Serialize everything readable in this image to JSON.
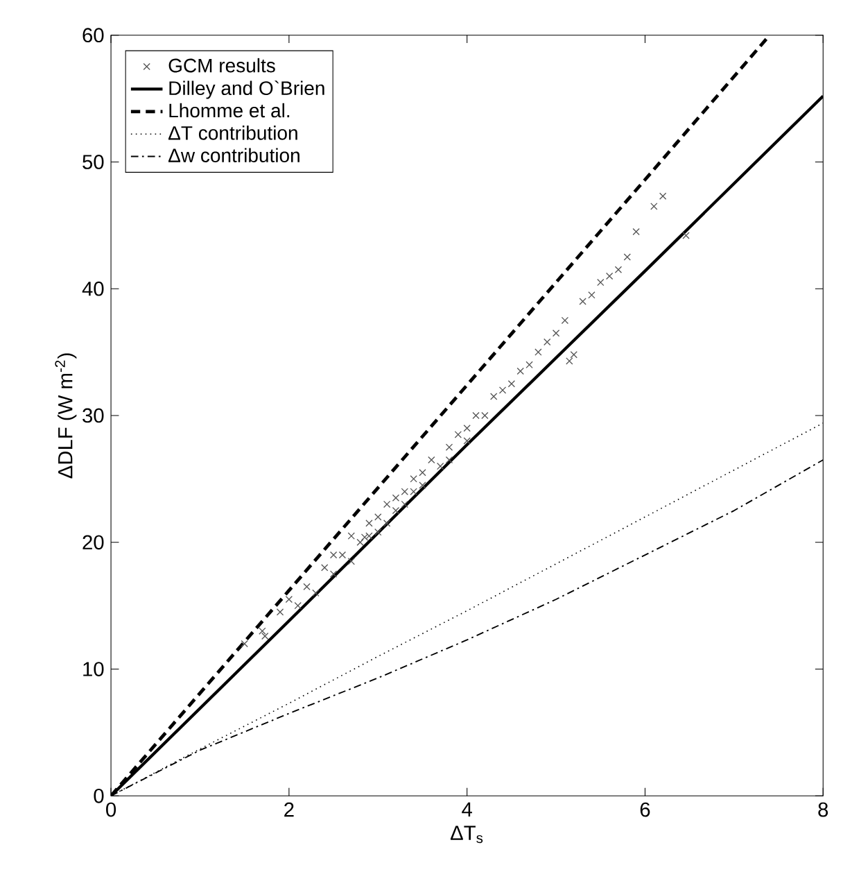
{
  "chart_data": {
    "type": "line",
    "xlabel": "ΔT$_{s}$",
    "ylabel": "ΔDLF (W m$^{-2}$)",
    "xlim": [
      0,
      8
    ],
    "ylim": [
      0,
      60
    ],
    "xticks": [
      0,
      2,
      4,
      6,
      8
    ],
    "yticks": [
      0,
      10,
      20,
      30,
      40,
      50,
      60
    ],
    "grid": false,
    "legend": "top left",
    "series": [
      {
        "name": "GCM results",
        "type": "scatter",
        "marker": "cross",
        "color": "#555555",
        "x": [
          1.5,
          1.7,
          1.73,
          1.9,
          2.0,
          2.1,
          2.2,
          2.3,
          2.4,
          2.5,
          2.5,
          2.6,
          2.7,
          2.7,
          2.8,
          2.85,
          2.9,
          2.9,
          3.0,
          3.0,
          3.1,
          3.1,
          3.2,
          3.2,
          3.3,
          3.3,
          3.4,
          3.4,
          3.5,
          3.5,
          3.6,
          3.7,
          3.8,
          3.8,
          3.9,
          4.0,
          4.0,
          4.1,
          4.2,
          4.3,
          4.4,
          4.5,
          4.6,
          4.7,
          4.8,
          4.9,
          5.0,
          5.1,
          5.15,
          5.2,
          5.3,
          5.4,
          5.5,
          5.6,
          5.7,
          5.8,
          5.9,
          6.1,
          6.2,
          6.46
        ],
        "values": [
          12.0,
          13.0,
          12.6,
          14.5,
          15.5,
          15.0,
          16.5,
          16.0,
          18.0,
          17.5,
          19.0,
          19.0,
          18.5,
          20.5,
          20.0,
          20.4,
          21.5,
          20.5,
          22.0,
          20.8,
          23.0,
          21.5,
          23.5,
          22.5,
          24.0,
          23.0,
          25.0,
          24.0,
          25.5,
          24.5,
          26.5,
          26.0,
          27.5,
          26.5,
          28.5,
          29.0,
          28.0,
          30.0,
          30.0,
          31.5,
          32.0,
          32.5,
          33.5,
          34.0,
          35.0,
          35.8,
          36.5,
          37.5,
          34.3,
          34.8,
          39.0,
          39.5,
          40.5,
          41.0,
          41.5,
          42.5,
          44.5,
          46.5,
          47.3,
          44.2
        ]
      },
      {
        "name": "Dilley and O`Brien",
        "line_style": "solid",
        "color": "#000000",
        "x": [
          0,
          2,
          4,
          6,
          8
        ],
        "values": [
          0,
          13.8,
          27.7,
          41.4,
          55.2
        ]
      },
      {
        "name": "Lhomme et al.",
        "line_style": "dashed",
        "color": "#000000",
        "x": [
          0,
          2,
          4,
          6,
          7.4
        ],
        "values": [
          0,
          16.2,
          32.4,
          48.6,
          60
        ]
      },
      {
        "name": "ΔT contribution",
        "line_style": "dotted",
        "color": "#000000",
        "x": [
          0,
          1,
          2,
          3,
          4,
          5,
          6,
          7,
          8
        ],
        "values": [
          0,
          3.7,
          7.3,
          11.0,
          14.6,
          18.3,
          22.0,
          25.7,
          29.4
        ]
      },
      {
        "name": "Δw contribution",
        "line_style": "dashdot",
        "color": "#000000",
        "x": [
          0,
          1,
          2,
          3,
          4,
          5,
          6,
          7,
          8
        ],
        "values": [
          0,
          3.6,
          6.5,
          9.3,
          12.3,
          15.5,
          19.0,
          22.5,
          26.5
        ]
      }
    ]
  }
}
